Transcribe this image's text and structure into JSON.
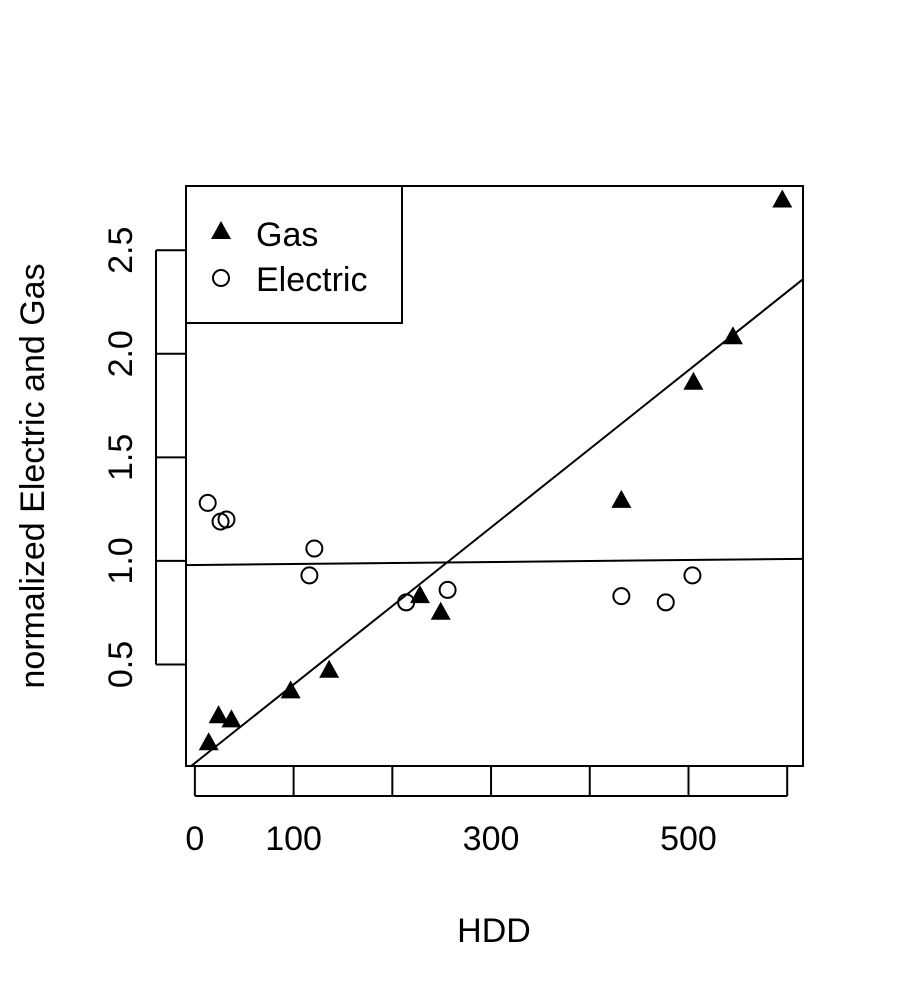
{
  "chart_data": {
    "type": "scatter",
    "xlabel": "HDD",
    "ylabel": "normalized Electric and Gas",
    "xlim": [
      -9,
      616
    ],
    "ylim": [
      0.01,
      2.81
    ],
    "x_ticks": [
      0,
      100,
      200,
      300,
      400,
      500,
      600
    ],
    "x_tick_labels": [
      "0",
      "100",
      "",
      "300",
      "",
      "500",
      ""
    ],
    "y_ticks": [
      0.5,
      1.0,
      1.5,
      2.0,
      2.5
    ],
    "y_tick_labels": [
      "0.5",
      "1.0",
      "1.5",
      "2.0",
      "2.5"
    ],
    "grid": false,
    "legend": {
      "position": "top-left",
      "entries": [
        {
          "label": "Gas",
          "marker": "filled-triangle"
        },
        {
          "label": "Electric",
          "marker": "open-circle"
        }
      ]
    },
    "series": [
      {
        "name": "Gas",
        "marker": "filled-triangle",
        "points": [
          {
            "x": 14,
            "y": 0.12
          },
          {
            "x": 24,
            "y": 0.25
          },
          {
            "x": 37,
            "y": 0.23
          },
          {
            "x": 97,
            "y": 0.37
          },
          {
            "x": 136,
            "y": 0.47
          },
          {
            "x": 228,
            "y": 0.83
          },
          {
            "x": 249,
            "y": 0.75
          },
          {
            "x": 432,
            "y": 1.29
          },
          {
            "x": 505,
            "y": 1.86
          },
          {
            "x": 545,
            "y": 2.08
          },
          {
            "x": 595,
            "y": 2.74
          }
        ]
      },
      {
        "name": "Electric",
        "marker": "open-circle",
        "points": [
          {
            "x": 13,
            "y": 1.28
          },
          {
            "x": 26,
            "y": 1.19
          },
          {
            "x": 32,
            "y": 1.2
          },
          {
            "x": 116,
            "y": 0.93
          },
          {
            "x": 121,
            "y": 1.06
          },
          {
            "x": 214,
            "y": 0.8
          },
          {
            "x": 256,
            "y": 0.86
          },
          {
            "x": 432,
            "y": 0.83
          },
          {
            "x": 477,
            "y": 0.8
          },
          {
            "x": 504,
            "y": 0.93
          }
        ]
      }
    ],
    "fit_lines": [
      {
        "series": "Gas",
        "points": [
          [
            -9,
            -0.01
          ],
          [
            616,
            2.36
          ]
        ]
      },
      {
        "series": "Electric",
        "points": [
          [
            -9,
            0.98
          ],
          [
            616,
            1.01
          ]
        ]
      }
    ]
  }
}
